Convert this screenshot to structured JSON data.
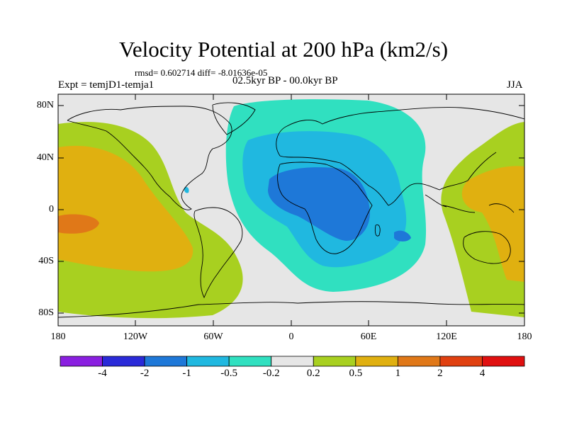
{
  "title": "Velocity Potential at 200 hPa (km2/s)",
  "stats": "rmsd= 0.602714 diff= -8.01636e-05",
  "experiment": "Expt = temjD1-temja1",
  "period": "02.5kyr BP - 00.0kyr BP",
  "season": "JJA",
  "lat_ticks": [
    "80N",
    "40N",
    "0",
    "40S",
    "80S"
  ],
  "lon_ticks": [
    "180",
    "120W",
    "60W",
    "0",
    "60E",
    "120E",
    "180"
  ],
  "colorbar": {
    "labels": [
      "-4",
      "-2",
      "-1",
      "-0.5",
      "-0.2",
      "0.2",
      "0.5",
      "1",
      "2",
      "4"
    ],
    "colors": [
      "#8a1fe0",
      "#2a2ad8",
      "#1e78d8",
      "#20b8e0",
      "#30e0c0",
      "#e6e6e6",
      "#a8d020",
      "#e0b010",
      "#e07818",
      "#e04010",
      "#e01010"
    ]
  },
  "palette": {
    "land_outline": "#000000",
    "positive_weak": "#a8d020",
    "positive_mid": "#e0b010",
    "positive_strong": "#e07818",
    "negative_weak": "#30e0c0",
    "negative_mid": "#20b8e0",
    "negative_strong": "#1e78d8",
    "neutral": "#e6e6e6"
  }
}
